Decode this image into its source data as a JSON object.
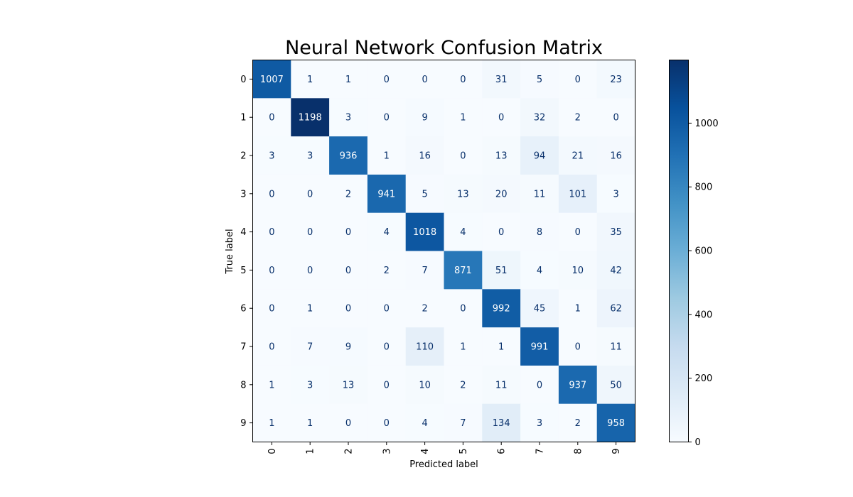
{
  "chart_data": {
    "type": "heatmap",
    "title": "Neural Network Confusion Matrix",
    "xlabel": "Predicted label",
    "ylabel": "True label",
    "x_tick_labels": [
      "0",
      "1",
      "2",
      "3",
      "4",
      "5",
      "6",
      "7",
      "8",
      "9"
    ],
    "y_tick_labels": [
      "0",
      "1",
      "2",
      "3",
      "4",
      "5",
      "6",
      "7",
      "8",
      "9"
    ],
    "matrix": [
      [
        1007,
        1,
        1,
        0,
        0,
        0,
        31,
        5,
        0,
        23
      ],
      [
        0,
        1198,
        3,
        0,
        9,
        1,
        0,
        32,
        2,
        0
      ],
      [
        3,
        3,
        936,
        1,
        16,
        0,
        13,
        94,
        21,
        16
      ],
      [
        0,
        0,
        2,
        941,
        5,
        13,
        20,
        11,
        101,
        3
      ],
      [
        0,
        0,
        0,
        4,
        1018,
        4,
        0,
        8,
        0,
        35
      ],
      [
        0,
        0,
        0,
        2,
        7,
        871,
        51,
        4,
        10,
        42
      ],
      [
        0,
        1,
        0,
        0,
        2,
        0,
        992,
        45,
        1,
        62
      ],
      [
        0,
        7,
        9,
        0,
        110,
        1,
        1,
        991,
        0,
        11
      ],
      [
        1,
        3,
        13,
        0,
        10,
        2,
        11,
        0,
        937,
        50
      ],
      [
        1,
        1,
        0,
        0,
        4,
        7,
        134,
        3,
        2,
        958
      ]
    ],
    "colormap": "Blues",
    "color_range": [
      0,
      1198
    ],
    "colorbar_ticks": [
      0,
      200,
      400,
      600,
      800,
      1000
    ],
    "colorbar_tick_labels": [
      "0",
      "200",
      "400",
      "600",
      "800",
      "1000"
    ],
    "text_color_dark": "#08306b",
    "text_color_light": "#ffffff",
    "grid": false
  }
}
